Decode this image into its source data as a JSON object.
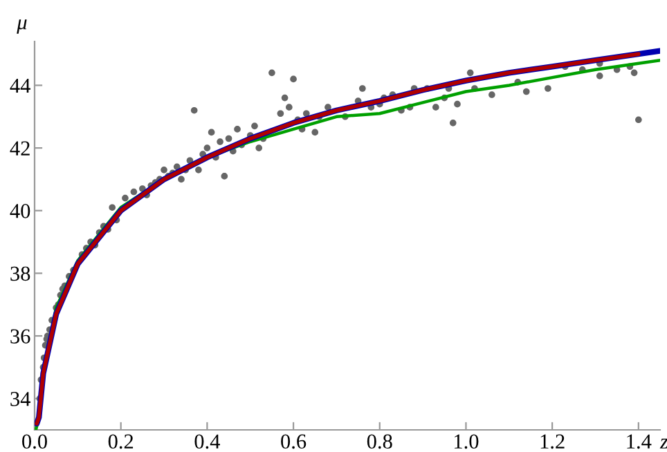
{
  "chart_data": {
    "type": "scatter",
    "xlabel": "z",
    "ylabel": "μ",
    "xlim": [
      0,
      1.45
    ],
    "ylim": [
      33.0,
      45.4
    ],
    "xticks": [
      {
        "value": 0,
        "label": "0.0"
      },
      {
        "value": 0.2,
        "label": "0.2"
      },
      {
        "value": 0.4,
        "label": "0.4"
      },
      {
        "value": 0.6,
        "label": "0.6"
      },
      {
        "value": 0.8,
        "label": "0.8"
      },
      {
        "value": 1.0,
        "label": "1.0"
      },
      {
        "value": 1.2,
        "label": "1.2"
      },
      {
        "value": 1.4,
        "label": "1.4"
      }
    ],
    "yticks": [
      34,
      36,
      38,
      40,
      42,
      44
    ],
    "grid": false,
    "legend": false,
    "series": [
      {
        "marker": "circle",
        "color": "#666666",
        "x": [
          0.012,
          0.015,
          0.02,
          0.022,
          0.025,
          0.028,
          0.03,
          0.035,
          0.04,
          0.05,
          0.055,
          0.06,
          0.065,
          0.07,
          0.08,
          0.09,
          0.11,
          0.12,
          0.13,
          0.14,
          0.15,
          0.16,
          0.17,
          0.18,
          0.19,
          0.21,
          0.23,
          0.25,
          0.26,
          0.27,
          0.28,
          0.29,
          0.3,
          0.31,
          0.32,
          0.33,
          0.34,
          0.35,
          0.36,
          0.37,
          0.38,
          0.39,
          0.4,
          0.41,
          0.42,
          0.43,
          0.44,
          0.45,
          0.46,
          0.47,
          0.48,
          0.5,
          0.51,
          0.52,
          0.53,
          0.55,
          0.57,
          0.58,
          0.59,
          0.6,
          0.61,
          0.62,
          0.63,
          0.65,
          0.66,
          0.68,
          0.72,
          0.75,
          0.76,
          0.78,
          0.8,
          0.81,
          0.83,
          0.85,
          0.87,
          0.88,
          0.91,
          0.93,
          0.95,
          0.96,
          0.97,
          0.98,
          1.01,
          1.02,
          1.06,
          1.12,
          1.14,
          1.19,
          1.23,
          1.27,
          1.31,
          1.31,
          1.35,
          1.38,
          1.39,
          1.4
        ],
        "values": [
          34.0,
          34.6,
          35.0,
          35.3,
          35.7,
          35.9,
          36.0,
          36.2,
          36.5,
          36.9,
          37.0,
          37.3,
          37.5,
          37.6,
          37.9,
          38.1,
          38.6,
          38.8,
          39.0,
          38.9,
          39.3,
          39.5,
          39.4,
          40.1,
          39.7,
          40.4,
          40.6,
          40.7,
          40.5,
          40.8,
          40.9,
          41.0,
          41.3,
          41.1,
          41.2,
          41.4,
          41.0,
          41.3,
          41.6,
          43.2,
          41.3,
          41.8,
          42.0,
          42.5,
          41.7,
          42.2,
          41.1,
          42.3,
          41.9,
          42.6,
          42.1,
          42.4,
          42.7,
          42.0,
          42.3,
          44.4,
          43.1,
          43.6,
          43.3,
          44.2,
          42.9,
          42.6,
          43.1,
          42.5,
          43.0,
          43.3,
          43.0,
          43.5,
          43.9,
          43.3,
          43.4,
          43.6,
          43.7,
          43.2,
          43.3,
          43.9,
          43.9,
          43.3,
          43.6,
          43.9,
          42.8,
          43.4,
          44.4,
          43.9,
          43.7,
          44.1,
          43.8,
          43.9,
          44.6,
          44.5,
          44.3,
          44.7,
          44.5,
          44.6,
          44.4,
          42.9
        ]
      },
      {
        "type": "line",
        "color": "#00a000",
        "x": [
          0.003,
          0.01,
          0.02,
          0.05,
          0.1,
          0.2,
          0.3,
          0.4,
          0.5,
          0.6,
          0.7,
          0.8,
          0.9,
          1.0,
          1.1,
          1.2,
          1.3,
          1.45
        ],
        "values": [
          33.0,
          33.4,
          34.9,
          36.9,
          38.4,
          40.1,
          41.0,
          41.7,
          42.2,
          42.6,
          43.0,
          43.1,
          43.45,
          43.8,
          44.0,
          44.25,
          44.5,
          44.8
        ]
      },
      {
        "type": "line",
        "color": "#0000b0",
        "x": [
          0.005,
          0.01,
          0.02,
          0.05,
          0.1,
          0.2,
          0.3,
          0.4,
          0.5,
          0.6,
          0.7,
          0.8,
          0.9,
          1.0,
          1.1,
          1.2,
          1.3,
          1.45
        ],
        "values": [
          33.2,
          33.4,
          34.8,
          36.7,
          38.3,
          40.0,
          41.0,
          41.7,
          42.3,
          42.8,
          43.2,
          43.5,
          43.85,
          44.15,
          44.4,
          44.6,
          44.8,
          45.1
        ]
      },
      {
        "type": "line",
        "color": "#b00000",
        "x": [
          0.005,
          0.01,
          0.02,
          0.05,
          0.1,
          0.2,
          0.3,
          0.4,
          0.5,
          0.6,
          0.7,
          0.8,
          0.9,
          1.0,
          1.1,
          1.2,
          1.3,
          1.4
        ],
        "values": [
          33.2,
          33.4,
          34.8,
          36.7,
          38.3,
          40.0,
          41.0,
          41.7,
          42.3,
          42.8,
          43.2,
          43.5,
          43.85,
          44.15,
          44.4,
          44.6,
          44.8,
          45.0
        ]
      }
    ]
  }
}
